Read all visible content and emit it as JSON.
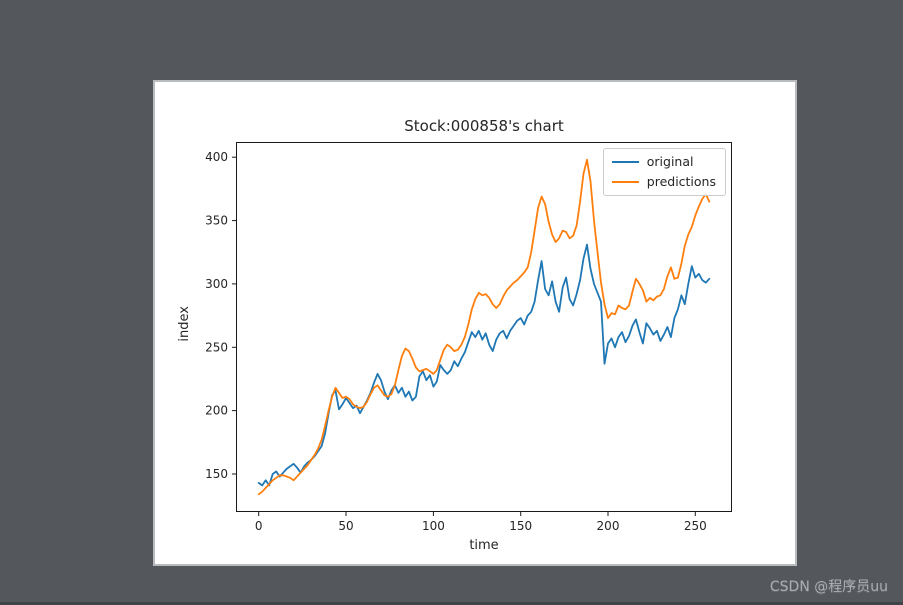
{
  "window": {
    "background": "#54585c",
    "bottom_strip_color": "#404447"
  },
  "figure": {
    "background": "#ffffff",
    "border_color": "#b9bcbe",
    "spine_color": "#1a1a1a",
    "tick_color": "#262626"
  },
  "chart_data": {
    "type": "line",
    "title": "Stock:000858's chart",
    "xlabel": "time",
    "ylabel": "index",
    "xlim": [
      -13,
      271
    ],
    "ylim": [
      120,
      412
    ],
    "x_ticks": [
      0,
      50,
      100,
      150,
      200,
      250
    ],
    "y_ticks": [
      150,
      200,
      250,
      300,
      350,
      400
    ],
    "grid": false,
    "legend_position": "upper right",
    "x": [
      0,
      2,
      4,
      6,
      8,
      10,
      12,
      14,
      16,
      18,
      20,
      22,
      24,
      26,
      28,
      30,
      32,
      34,
      36,
      38,
      40,
      42,
      44,
      46,
      48,
      50,
      52,
      54,
      56,
      58,
      60,
      62,
      64,
      66,
      68,
      70,
      72,
      74,
      76,
      78,
      80,
      82,
      84,
      86,
      88,
      90,
      92,
      94,
      96,
      98,
      100,
      102,
      104,
      106,
      108,
      110,
      112,
      114,
      116,
      118,
      120,
      122,
      124,
      126,
      128,
      130,
      132,
      134,
      136,
      138,
      140,
      142,
      144,
      146,
      148,
      150,
      152,
      154,
      156,
      158,
      160,
      162,
      164,
      166,
      168,
      170,
      172,
      174,
      176,
      178,
      180,
      182,
      184,
      186,
      188,
      190,
      192,
      194,
      196,
      198,
      200,
      202,
      204,
      206,
      208,
      210,
      212,
      214,
      216,
      218,
      220,
      222,
      224,
      226,
      228,
      230,
      232,
      234,
      236,
      238,
      240,
      242,
      244,
      246,
      248,
      250,
      252,
      254,
      256,
      258
    ],
    "series": [
      {
        "name": "original",
        "color": "#1f77b4",
        "values": [
          143,
          141,
          145,
          141,
          150,
          152,
          148,
          151,
          154,
          156,
          158,
          155,
          151,
          156,
          159,
          161,
          164,
          168,
          172,
          182,
          198,
          212,
          216,
          201,
          205,
          210,
          206,
          202,
          204,
          198,
          203,
          208,
          214,
          222,
          229,
          224,
          215,
          209,
          216,
          220,
          214,
          218,
          211,
          215,
          208,
          211,
          227,
          231,
          224,
          228,
          219,
          223,
          236,
          232,
          229,
          232,
          239,
          235,
          241,
          246,
          254,
          262,
          258,
          263,
          256,
          261,
          252,
          247,
          256,
          261,
          263,
          257,
          263,
          267,
          271,
          273,
          268,
          275,
          278,
          286,
          303,
          318,
          296,
          291,
          302,
          286,
          278,
          297,
          305,
          288,
          283,
          292,
          303,
          320,
          331,
          312,
          300,
          293,
          286,
          237,
          253,
          257,
          250,
          258,
          262,
          254,
          259,
          267,
          272,
          262,
          253,
          269,
          265,
          260,
          263,
          255,
          260,
          266,
          258,
          273,
          280,
          291,
          284,
          300,
          314,
          305,
          308,
          303,
          301,
          304
        ]
      },
      {
        "name": "predictions",
        "color": "#ff7f0e",
        "values": [
          134,
          136,
          139,
          142,
          145,
          147,
          149,
          149,
          148,
          147,
          145,
          148,
          151,
          154,
          157,
          161,
          165,
          170,
          177,
          188,
          200,
          211,
          218,
          214,
          210,
          211,
          209,
          205,
          203,
          202,
          203,
          207,
          213,
          218,
          220,
          216,
          212,
          211,
          213,
          220,
          232,
          243,
          249,
          247,
          241,
          234,
          231,
          232,
          233,
          231,
          229,
          232,
          240,
          248,
          252,
          250,
          247,
          248,
          252,
          258,
          268,
          280,
          288,
          293,
          291,
          292,
          289,
          284,
          281,
          284,
          290,
          295,
          298,
          301,
          303,
          306,
          309,
          313,
          325,
          342,
          360,
          369,
          363,
          349,
          339,
          333,
          336,
          342,
          341,
          336,
          338,
          346,
          365,
          387,
          398,
          381,
          350,
          325,
          301,
          284,
          273,
          277,
          276,
          283,
          281,
          280,
          283,
          294,
          304,
          300,
          295,
          286,
          289,
          287,
          290,
          291,
          296,
          306,
          313,
          304,
          305,
          316,
          330,
          339,
          345,
          354,
          361,
          367,
          371,
          365
        ]
      }
    ]
  },
  "watermark": {
    "text": "CSDN @程序员uu",
    "color": "#a9aeb1"
  }
}
